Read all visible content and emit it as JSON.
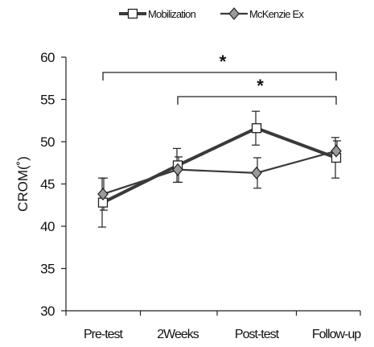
{
  "chart_data": {
    "type": "line",
    "categories": [
      "Pre-test",
      "2Weeks",
      "Post-test",
      "Follow-up"
    ],
    "ylabel": "CROM(˚)",
    "xlabel": "",
    "ylim": [
      30,
      60
    ],
    "yticks": [
      30,
      35,
      40,
      45,
      50,
      55,
      60
    ],
    "grid": false,
    "legend_position": "top",
    "series": [
      {
        "name": "Mobilization",
        "values": [
          42.8,
          47.2,
          51.6,
          48.1
        ],
        "error": [
          2.9,
          2.0,
          2.0,
          2.4
        ],
        "marker": "square",
        "color": "#3a3a3a",
        "marker_fill": "#ffffff"
      },
      {
        "name": "McKenzie Ex",
        "values": [
          43.8,
          46.7,
          46.3,
          48.9
        ],
        "error": [
          1.9,
          1.5,
          1.8,
          1.2
        ],
        "marker": "diamond",
        "color": "#3a3a3a",
        "marker_fill": "#9a9a9a"
      }
    ],
    "significance": [
      {
        "from": "Pre-test",
        "to": "Follow-up",
        "label": "*"
      },
      {
        "from": "2Weeks",
        "to": "Follow-up",
        "label": "*"
      }
    ]
  }
}
